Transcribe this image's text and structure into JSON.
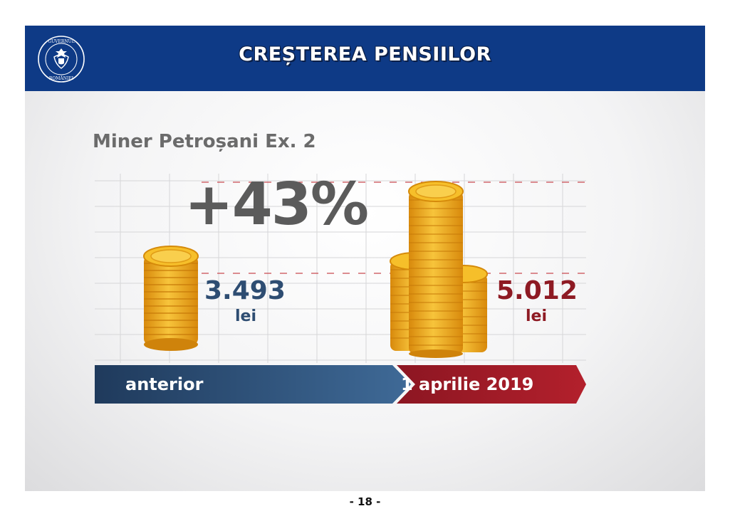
{
  "header": {
    "title": "CREȘTEREA PENSIILOR",
    "logo_text": "GUVERNUL ROMÂNIEI"
  },
  "content": {
    "subtitle": "Miner Petroșani Ex. 2",
    "increase": "+43%",
    "before": {
      "value": "3.493",
      "unit": "lei",
      "label": "anterior"
    },
    "after": {
      "value": "5.012",
      "unit": "lei",
      "label": "1 aprilie 2019"
    }
  },
  "footer": {
    "page": "- 18 -"
  },
  "colors": {
    "header_blue": "#0e3a86",
    "before_blue": "#2e4d72",
    "after_red": "#8e1a23",
    "coin_gold": "#f2b21c"
  }
}
